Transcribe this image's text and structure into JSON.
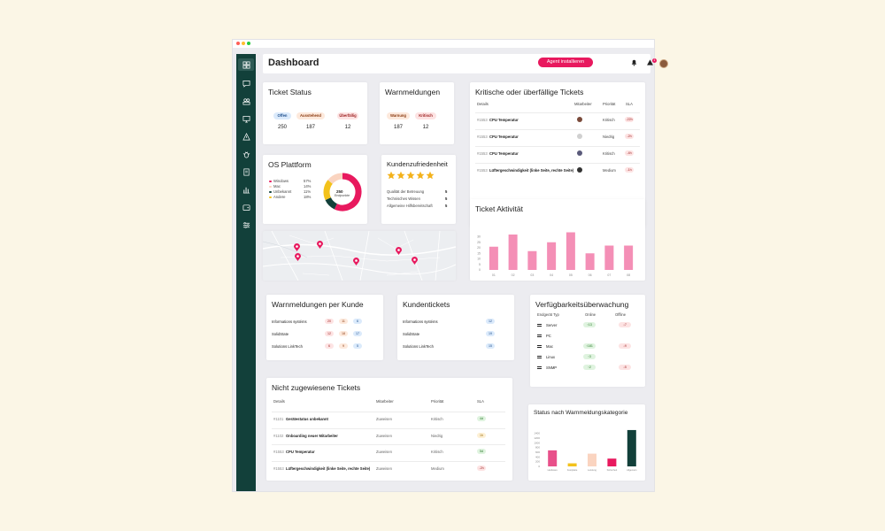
{
  "header": {
    "title": "Dashboard",
    "agent_button": "Agent installieren",
    "notification_count": "1"
  },
  "sidebar": {
    "items": [
      "dashboard-icon",
      "chat-icon",
      "users-icon",
      "monitor-icon",
      "alert-icon",
      "bug-icon",
      "document-icon",
      "chart-icon",
      "wallet-icon",
      "settings-icon"
    ]
  },
  "ticket_status": {
    "title": "Ticket Status",
    "items": [
      {
        "label": "Offen",
        "value": "250",
        "color": "#dbeafb",
        "text": "#1e4e8c"
      },
      {
        "label": "Ausstehend",
        "value": "187",
        "color": "#fde9dc",
        "text": "#8a3a10"
      },
      {
        "label": "Überfällig",
        "value": "12",
        "color": "#fde3e3",
        "text": "#9a1c1c"
      }
    ]
  },
  "warnmeldungen": {
    "title": "Warnmeldungen",
    "items": [
      {
        "label": "Warnung",
        "value": "187",
        "color": "#fde9dc",
        "text": "#8a3a10"
      },
      {
        "label": "Kritisch",
        "value": "12",
        "color": "#fde3e3",
        "text": "#9a1c1c"
      }
    ]
  },
  "critical": {
    "title": "Kritische oder überfällige Tickets",
    "headers": [
      "Details",
      "Mitarbeiter",
      "Priorität",
      "SLA"
    ],
    "rows": [
      {
        "id": "#1553",
        "name": "CPU Temperatur",
        "priority": "Kritisch",
        "sla": "-22h"
      },
      {
        "id": "#1553",
        "name": "CPU Temperatur",
        "priority": "Niedrig",
        "sla": "-2h"
      },
      {
        "id": "#1553",
        "name": "CPU Temperatur",
        "priority": "Kritisch",
        "sla": "-4h"
      },
      {
        "id": "#1553",
        "name": "Lüftergeschwindigkeit (linke Seite, rechte Seite)",
        "priority": "Medium",
        "sla": "-1h"
      }
    ]
  },
  "os": {
    "title": "OS Plattform",
    "items": [
      {
        "label": "Windows",
        "value": "57%",
        "color": "#e8195e"
      },
      {
        "label": "Mac",
        "value": "14%",
        "color": "#fad4c0"
      },
      {
        "label": "Unbekannt",
        "value": "11%",
        "color": "#12403a"
      },
      {
        "label": "Andere",
        "value": "18%",
        "color": "#f3c21b"
      }
    ],
    "center_value": "250",
    "center_label": "Endpunkte"
  },
  "satisfaction": {
    "title": "Kundenzufriedenheit",
    "stars": 5,
    "items": [
      {
        "label": "Qualität der Betreuung",
        "value": "5"
      },
      {
        "label": "Technisches Wissen",
        "value": "5"
      },
      {
        "label": "Allgemeine Hilfsbereitschaft",
        "value": "5"
      }
    ]
  },
  "activity": {
    "title": "Ticket Aktivität",
    "chart_data": {
      "type": "bar",
      "categories": [
        "01",
        "02",
        "03",
        "04",
        "05",
        "06",
        "07",
        "08"
      ],
      "values": [
        21,
        32,
        17,
        25,
        34,
        15,
        22,
        22
      ],
      "ylim": [
        0,
        40
      ],
      "yticks": [
        "0",
        "5",
        "10",
        "15",
        "20",
        "25",
        "30"
      ],
      "xtick_labels": [
        "01",
        "02",
        "03",
        "04",
        "05",
        "06",
        "07",
        "08"
      ],
      "color": "#f48fb6"
    }
  },
  "kunde": {
    "title": "Warnmeldungen per Kunde",
    "rows": [
      {
        "name": "Informations systéms",
        "a": "20",
        "b": "11",
        "c": "6"
      },
      {
        "name": "SolidState",
        "a": "12",
        "b": "18",
        "c": "17"
      },
      {
        "name": "Solutions LinkTech",
        "a": "6",
        "b": "9",
        "c": "5"
      }
    ]
  },
  "kundentickets": {
    "title": "Kundentickets",
    "rows": [
      {
        "name": "Informations systéms",
        "v": "12"
      },
      {
        "name": "SolidState",
        "v": "19"
      },
      {
        "name": "Solutions LinkTech",
        "v": "15"
      }
    ]
  },
  "availability": {
    "title": "Verfügbarkeitsüberwachung",
    "headers": [
      "Endgerät Typ",
      "Online",
      "Offline"
    ],
    "rows": [
      {
        "name": "Server",
        "online": "↑13",
        "offline": "↓7"
      },
      {
        "name": "PC",
        "online": "",
        "offline": ""
      },
      {
        "name": "Mac",
        "online": "↑181",
        "offline": "↓9"
      },
      {
        "name": "Linux",
        "online": "↑3",
        "offline": ""
      },
      {
        "name": "SNMP",
        "online": "↑2",
        "offline": "↓5"
      }
    ]
  },
  "unassigned": {
    "title": "Nicht zugewiesene Tickets",
    "headers": [
      "Details",
      "Mitarbeiter",
      "Priorität",
      "SLA"
    ],
    "rows": [
      {
        "id": "#1101",
        "name": "Gerätestatus unbekannt",
        "assign": "Zuweisen",
        "priority": "Kritisch",
        "sla": "4d",
        "sla_color": "#dff3df",
        "sla_text": "#2a7a2a"
      },
      {
        "id": "#1102",
        "name": "Onboarding neuer Mitarbeiter",
        "assign": "Zuweisen",
        "priority": "Niedrig",
        "sla": "1h",
        "sla_color": "#fdf0d5",
        "sla_text": "#9a6a00"
      },
      {
        "id": "#1553",
        "name": "CPU Temperatur",
        "assign": "Zuweisen",
        "priority": "Kritisch",
        "sla": "5d",
        "sla_color": "#dff3df",
        "sla_text": "#2a7a2a"
      },
      {
        "id": "#1553",
        "name": "Lüftergeschwindigkeit (linke Seite, rechte Seite)",
        "assign": "Zuweisen",
        "priority": "Medium",
        "sla": "-2h",
        "sla_color": "#fde3e3",
        "sla_text": "#9a1c1c"
      }
    ]
  },
  "category": {
    "title": "Status nach Warnmeldungskategorie",
    "chart_data": {
      "type": "bar",
      "categories": [
        "Hardware",
        "Festplatte",
        "Leistung",
        "Sicherheit",
        "Allgemein"
      ],
      "values": [
        680,
        130,
        540,
        330,
        1540
      ],
      "colors": [
        "#e8508a",
        "#f3c21b",
        "#fad4c0",
        "#e8195e",
        "#12403a"
      ],
      "ylim": [
        0,
        1800
      ],
      "yticks": [
        "0",
        "200",
        "400",
        "600",
        "800",
        "1000",
        "1200",
        "1400"
      ]
    }
  }
}
